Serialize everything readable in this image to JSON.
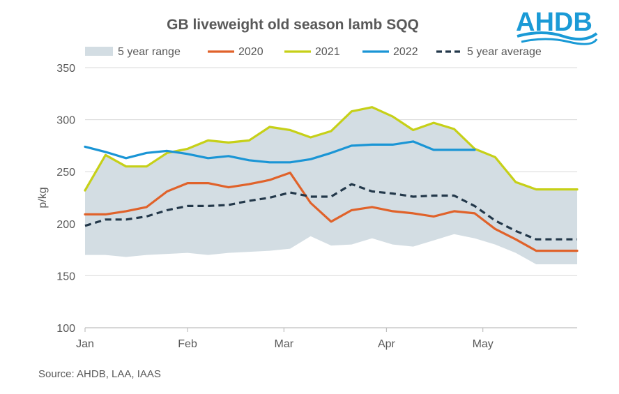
{
  "logo": {
    "text": "AHDB",
    "color": "#1a9ad6"
  },
  "source": "Source: AHDB, LAA, IAAS",
  "chart_data": {
    "type": "line",
    "title": "GB liveweight old season lamb SQQ",
    "xlabel": "",
    "ylabel": "p/kg",
    "ylim": [
      100,
      350
    ],
    "yticks": [
      100,
      150,
      200,
      250,
      300,
      350
    ],
    "x_tick_labels": [
      {
        "label": "Jan",
        "week": 0
      },
      {
        "label": "Feb",
        "week": 5
      },
      {
        "label": "Mar",
        "week": 9.7
      },
      {
        "label": "Apr",
        "week": 14.7
      },
      {
        "label": "May",
        "week": 19.4
      }
    ],
    "x_range": [
      0,
      24
    ],
    "grid": true,
    "legend_position": "top",
    "band": {
      "name": "5 year range",
      "color": "#d3dde3",
      "x": [
        0,
        1,
        2,
        3,
        4,
        5,
        6,
        7,
        8,
        9,
        10,
        11,
        12,
        13,
        14,
        15,
        16,
        17,
        18,
        19,
        20,
        21,
        22,
        23,
        24
      ],
      "upper": [
        232,
        266,
        255,
        255,
        268,
        272,
        280,
        278,
        280,
        293,
        290,
        283,
        289,
        308,
        312,
        303,
        290,
        297,
        291,
        272,
        264,
        240,
        233,
        232,
        232
      ],
      "lower": [
        170,
        170,
        168,
        170,
        171,
        172,
        170,
        172,
        173,
        174,
        176,
        188,
        179,
        180,
        186,
        180,
        178,
        184,
        190,
        186,
        180,
        172,
        161,
        161,
        161
      ]
    },
    "series": [
      {
        "name": "2020",
        "color": "#e0622a",
        "dash": false,
        "x": [
          0,
          1,
          2,
          3,
          4,
          5,
          6,
          7,
          8,
          9,
          10,
          11,
          12,
          13,
          14,
          15,
          16,
          17,
          18,
          19,
          20,
          21,
          22,
          23,
          24
        ],
        "values": [
          209,
          209,
          212,
          216,
          231,
          239,
          239,
          235,
          238,
          242,
          249,
          220,
          202,
          213,
          216,
          212,
          210,
          207,
          212,
          210,
          195,
          185,
          174,
          174,
          174
        ]
      },
      {
        "name": "2021",
        "color": "#c6d018",
        "dash": false,
        "x": [
          0,
          1,
          2,
          3,
          4,
          5,
          6,
          7,
          8,
          9,
          10,
          11,
          12,
          13,
          14,
          15,
          16,
          17,
          18,
          19,
          20,
          21,
          22,
          23,
          24
        ],
        "values": [
          232,
          266,
          255,
          255,
          268,
          272,
          280,
          278,
          280,
          293,
          290,
          283,
          289,
          308,
          312,
          303,
          290,
          297,
          291,
          272,
          264,
          240,
          233,
          233,
          233
        ]
      },
      {
        "name": "2022",
        "color": "#1a95d5",
        "dash": false,
        "x": [
          0,
          1,
          2,
          3,
          4,
          5,
          6,
          7,
          8,
          9,
          10,
          11,
          12,
          13,
          14,
          15,
          16,
          17,
          18,
          19
        ],
        "values": [
          274,
          269,
          263,
          268,
          270,
          267,
          263,
          265,
          261,
          259,
          259,
          262,
          268,
          275,
          276,
          276,
          279,
          271,
          271,
          271
        ]
      },
      {
        "name": "5 year average",
        "color": "#23384a",
        "dash": true,
        "x": [
          0,
          1,
          2,
          3,
          4,
          5,
          6,
          7,
          8,
          9,
          10,
          11,
          12,
          13,
          14,
          15,
          16,
          17,
          18,
          19,
          20,
          21,
          22,
          23,
          24
        ],
        "values": [
          198,
          204,
          204,
          207,
          213,
          217,
          217,
          218,
          222,
          225,
          230,
          226,
          226,
          238,
          231,
          229,
          226,
          227,
          227,
          217,
          203,
          193,
          185,
          185,
          185
        ]
      }
    ]
  }
}
